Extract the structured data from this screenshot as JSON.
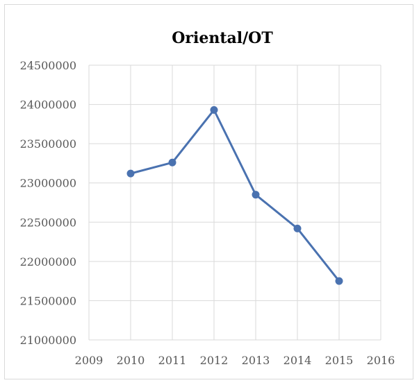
{
  "chart_data": {
    "type": "line",
    "title": "Oriental/OT",
    "xlabel": "",
    "ylabel": "",
    "xlim": [
      2009,
      2016
    ],
    "ylim": [
      21000000,
      24500000
    ],
    "x_ticks": [
      "2009",
      "2010",
      "2011",
      "2012",
      "2013",
      "2014",
      "2015",
      "2016"
    ],
    "y_ticks": [
      "21000000",
      "21500000",
      "22000000",
      "22500000",
      "23000000",
      "23500000",
      "24000000",
      "24500000"
    ],
    "grid": true,
    "legend": "none",
    "series": [
      {
        "x": [
          2010,
          2011,
          2012,
          2013,
          2014,
          2015
        ],
        "values": [
          23120000,
          23260000,
          23930000,
          22850000,
          22420000,
          21750000
        ],
        "color": "#4a72b0"
      }
    ]
  }
}
